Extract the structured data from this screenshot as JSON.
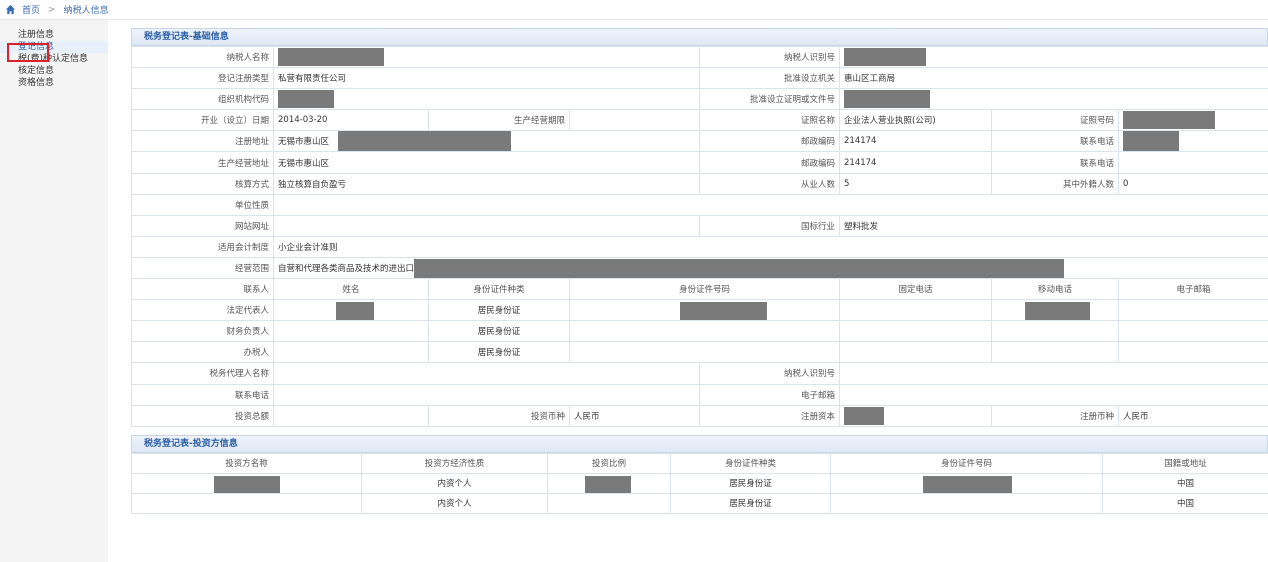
{
  "breadcrumb": {
    "home": "首页",
    "separator": ">",
    "current": "纳税人信息"
  },
  "sidebar": {
    "items": [
      {
        "label": "注册信息"
      },
      {
        "label": "登记信息"
      },
      {
        "label": "税(费)种认定信息"
      },
      {
        "label": "核定信息"
      },
      {
        "label": "资格信息"
      }
    ]
  },
  "basic": {
    "section_title": "税务登记表-基础信息",
    "labels": {
      "taxpayer_name": "纳税人名称",
      "taxpayer_id": "纳税人识别号",
      "reg_type": "登记注册类型",
      "approval_org": "批准设立机关",
      "org_code": "组织机构代码",
      "approval_doc": "批准设立证明或文件号",
      "open_date": "开业（设立）日期",
      "op_period": "生产经营期限",
      "cert_name": "证照名称",
      "cert_no": "证照号码",
      "reg_addr": "注册地址",
      "postcode": "邮政编码",
      "phone": "联系电话",
      "op_addr": "生产经营地址",
      "accounting": "核算方式",
      "employees": "从业人数",
      "foreign_staff": "其中外籍人数",
      "unit_nature": "单位性质",
      "website": "网站网址",
      "industry": "国标行业",
      "acc_system": "适用会计制度",
      "scope": "经营范围"
    },
    "values": {
      "reg_type": "私营有限责任公司",
      "approval_org": "惠山区工商局",
      "open_date": "2014-03-20",
      "cert_name": "企业法人营业执照(公司)",
      "reg_addr": "无锡市惠山区",
      "postcode": "214174",
      "op_addr": "无锡市惠山区",
      "postcode2": "214174",
      "accounting": "独立核算自负盈亏",
      "employees": "5",
      "foreign_staff": "0",
      "industry": "塑料批发",
      "acc_system": "小企业会计准则",
      "scope": "自营和代理各类商品及技术的进出口业务"
    },
    "contacts": {
      "headers": [
        "联系人",
        "姓名",
        "身份证件种类",
        "身份证件号码",
        "固定电话",
        "移动电话",
        "电子邮箱"
      ],
      "rows": [
        {
          "role": "法定代表人",
          "id_type": "居民身份证"
        },
        {
          "role": "财务负责人",
          "id_type": "居民身份证"
        },
        {
          "role": "办税人",
          "id_type": "居民身份证"
        }
      ]
    },
    "agent": {
      "agent_name_label": "税务代理人名称",
      "agent_id_label": "纳税人识别号",
      "agent_phone_label": "联系电话",
      "agent_email_label": "电子邮箱",
      "invest_total_label": "投资总额",
      "invest_currency_label": "投资币种",
      "invest_currency": "人民币",
      "reg_capital_label": "注册资本",
      "reg_currency_label": "注册币种",
      "reg_currency": "人民币"
    }
  },
  "investor": {
    "section_title": "税务登记表-投资方信息",
    "headers": [
      "投资方名称",
      "投资方经济性质",
      "投资比例",
      "身份证件种类",
      "身份证件号码",
      "国籍或地址"
    ],
    "rows": [
      {
        "nature": "内资个人",
        "id_type": "居民身份证",
        "nationality": "中国"
      },
      {
        "nature": "内资个人",
        "id_type": "居民身份证",
        "nationality": "中国"
      }
    ]
  },
  "colors": {
    "accent": "#2a5ea8",
    "highlight_box": "#d9232d",
    "redaction": "#7a7a7a"
  }
}
